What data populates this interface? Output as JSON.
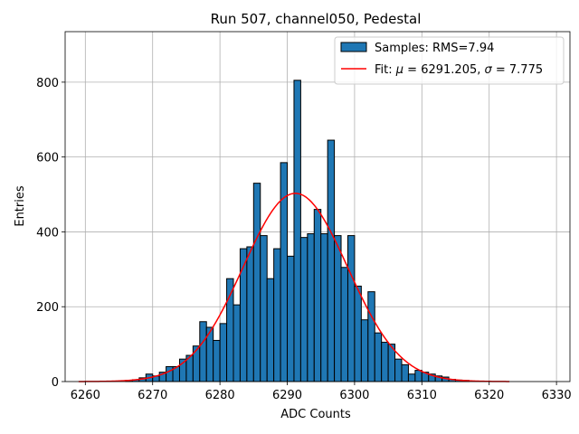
{
  "chart_data": {
    "type": "bar",
    "title": "Run 507, channel050, Pedestal",
    "xlabel": "ADC Counts",
    "ylabel": "Entries",
    "xlim": [
      6257,
      6332
    ],
    "ylim": [
      0,
      935
    ],
    "xticks": [
      6260,
      6270,
      6280,
      6290,
      6300,
      6310,
      6320,
      6330
    ],
    "yticks": [
      0,
      200,
      400,
      600,
      800
    ],
    "grid": true,
    "legend_position": "top-right",
    "histogram": {
      "name": "Samples: RMS=7.94",
      "color": "#1f77b4",
      "bin_start": 6266,
      "bin_width": 1,
      "counts": [
        3,
        5,
        10,
        20,
        15,
        25,
        40,
        40,
        60,
        70,
        95,
        160,
        145,
        110,
        155,
        275,
        205,
        355,
        360,
        530,
        390,
        275,
        355,
        585,
        335,
        805,
        385,
        395,
        460,
        395,
        645,
        390,
        305,
        390,
        255,
        165,
        240,
        130,
        105,
        100,
        60,
        45,
        20,
        30,
        25,
        20,
        15,
        12,
        6,
        4,
        3
      ]
    },
    "fit": {
      "name": "Fit: μ = 6291.205, σ = 7.775",
      "color": "#ff0000",
      "mu": 6291.205,
      "sigma": 7.775,
      "amplitude": 503,
      "x_range": [
        6259,
        6323
      ]
    }
  },
  "legend": {
    "samples_label": "Samples: RMS=7.94",
    "fit_prefix": "Fit: ",
    "mu_symbol": "μ",
    "fit_mu_part": " = 6291.205, ",
    "sigma_symbol": "σ",
    "fit_sigma_part": " = 7.775"
  }
}
